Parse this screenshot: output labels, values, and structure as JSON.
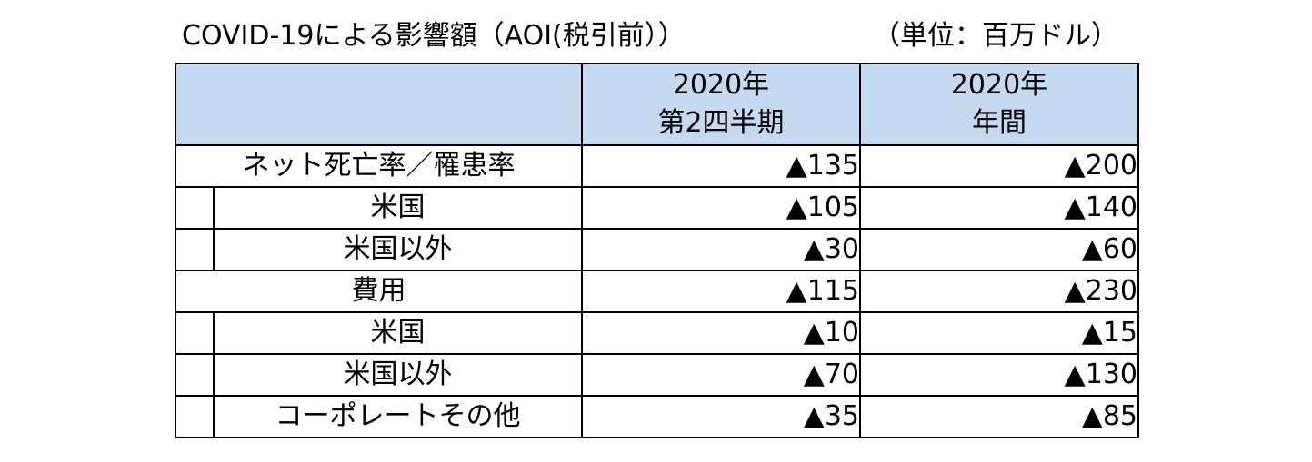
{
  "title": "COVID-19による影響額（AOI(税引前））",
  "unit": "（単位：百万ドル）",
  "table": {
    "headers": [
      {
        "line1": "",
        "line2": ""
      },
      {
        "line1": "2020年",
        "line2": "第2四半期"
      },
      {
        "line1": "2020年",
        "line2": "年間"
      }
    ],
    "sections": [
      {
        "label": "ネット死亡率／罹患率",
        "q2": "▲135",
        "year": "▲200",
        "rows": [
          {
            "label": "米国",
            "q2": "▲105",
            "year": "▲140"
          },
          {
            "label": "米国以外",
            "q2": "▲30",
            "year": "▲60"
          }
        ]
      },
      {
        "label": "費用",
        "q2": "▲115",
        "year": "▲230",
        "rows": [
          {
            "label": "米国",
            "q2": "▲10",
            "year": "▲15"
          },
          {
            "label": "米国以外",
            "q2": "▲70",
            "year": "▲130"
          },
          {
            "label": "コーポレートその他",
            "q2": "▲35",
            "year": "▲85"
          }
        ]
      }
    ]
  }
}
